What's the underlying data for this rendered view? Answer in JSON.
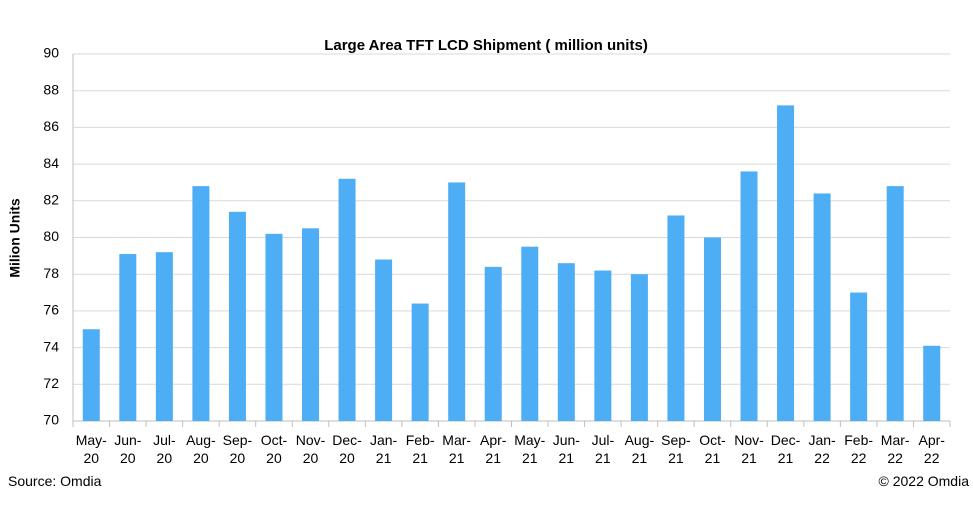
{
  "chart_data": {
    "type": "bar",
    "title": "Large Area TFT LCD Shipment ( million units)",
    "y_label": "Milion Units",
    "source": "Source: Omdia",
    "copyright": "© 2022 Omdia",
    "categories": [
      "May-20",
      "Jun-20",
      "Jul-20",
      "Aug-20",
      "Sep-20",
      "Oct-20",
      "Nov-20",
      "Dec-20",
      "Jan-21",
      "Feb-21",
      "Mar-21",
      "Apr-21",
      "May-21",
      "Jun-21",
      "Jul-21",
      "Aug-21",
      "Sep-21",
      "Oct-21",
      "Nov-21",
      "Dec-21",
      "Jan-22",
      "Feb-22",
      "Mar-22",
      "Apr-22"
    ],
    "values": [
      75.0,
      79.1,
      79.2,
      82.8,
      81.4,
      80.2,
      80.5,
      83.2,
      78.8,
      76.4,
      83.0,
      78.4,
      79.5,
      78.6,
      78.2,
      78.0,
      81.2,
      80.0,
      83.6,
      87.2,
      82.4,
      77.0,
      82.8,
      74.1
    ],
    "color": "#4daef5",
    "ylim": [
      70,
      90
    ],
    "yticks": [
      70,
      72,
      74,
      76,
      78,
      80,
      82,
      84,
      86,
      88,
      90
    ],
    "grid": true
  }
}
